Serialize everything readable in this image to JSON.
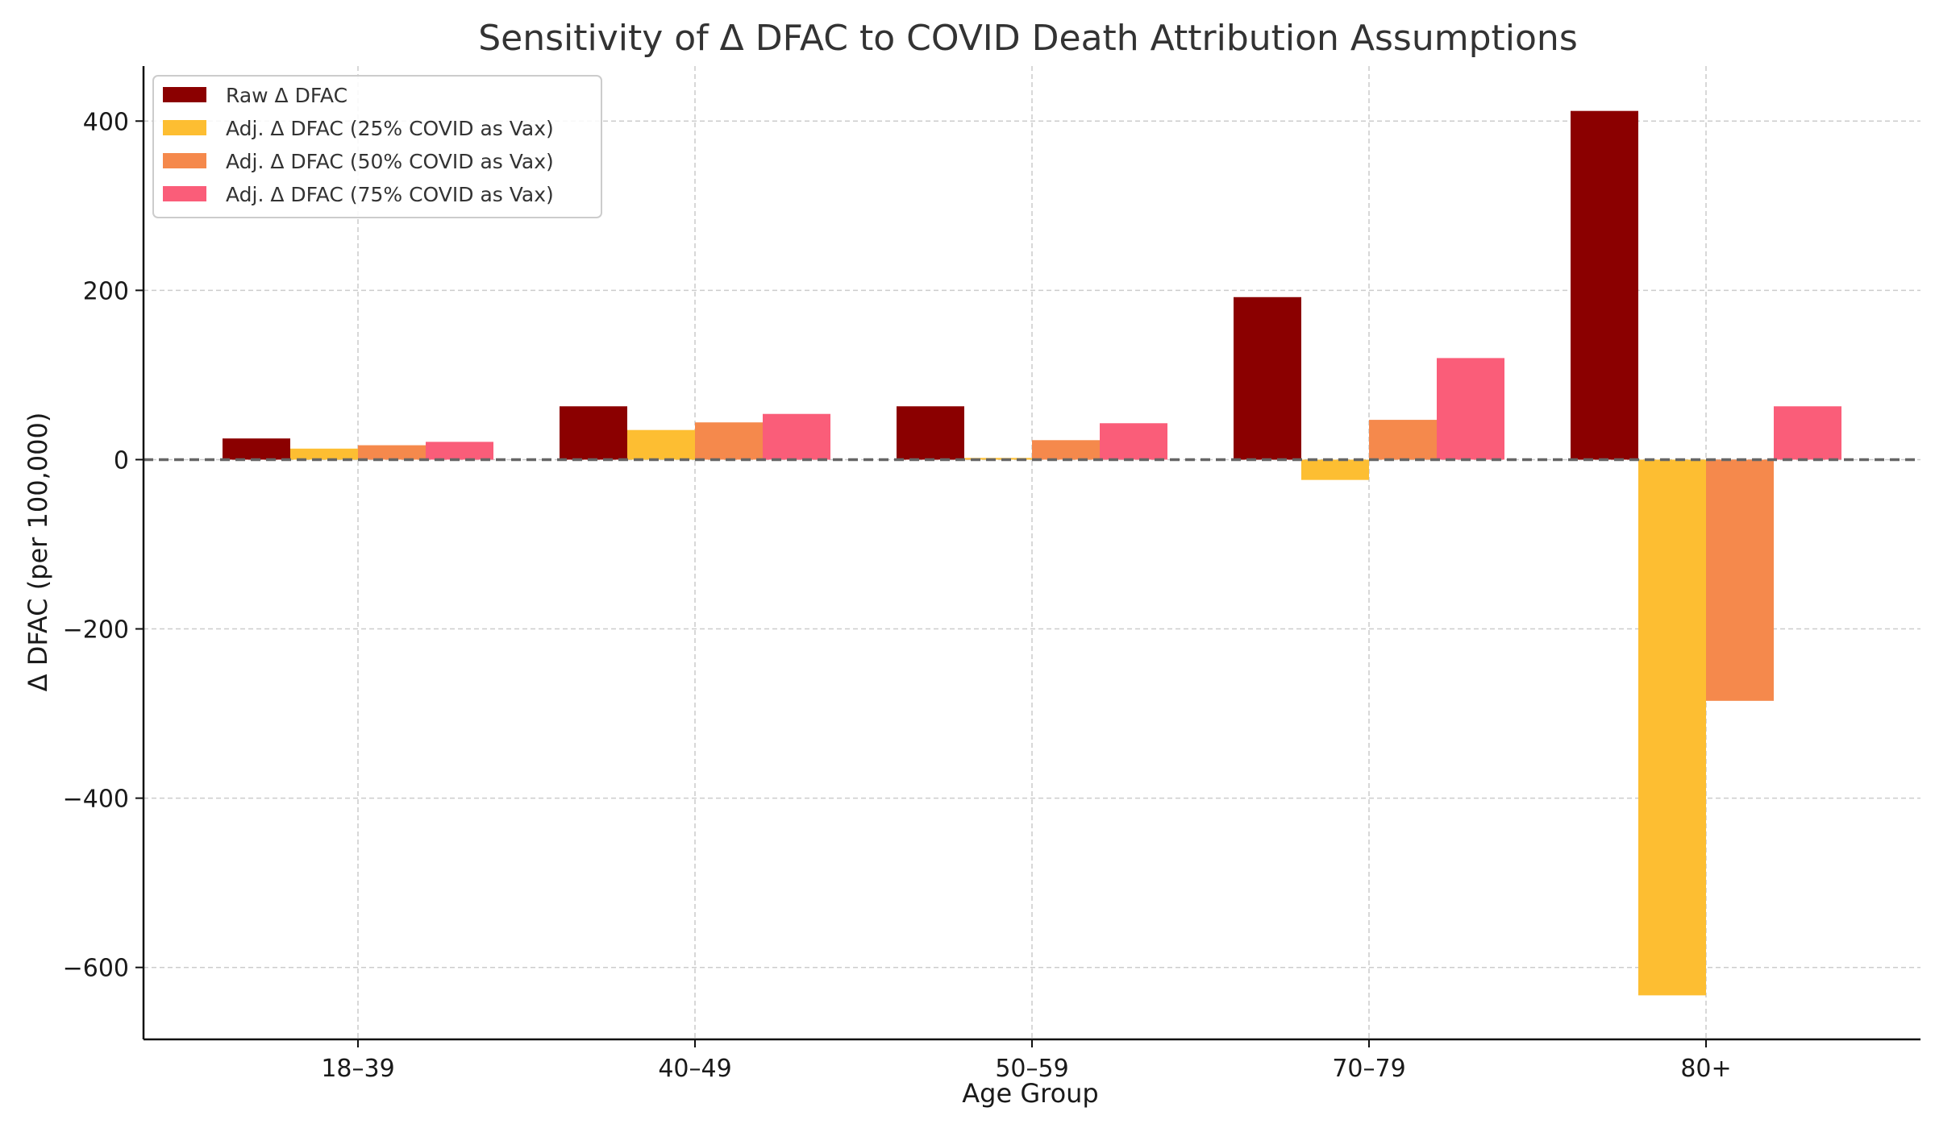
{
  "chart_data": {
    "type": "bar",
    "title": "Sensitivity of Δ DFAC to COVID Death Attribution Assumptions",
    "xlabel": "Age Group",
    "ylabel": "Δ DFAC (per 100,000)",
    "categories": [
      "18–39",
      "40–49",
      "50–59",
      "70–79",
      "80+"
    ],
    "ylim": [
      -685,
      465
    ],
    "yticks": [
      400,
      200,
      0,
      -200,
      -400,
      -600
    ],
    "ytick_labels": [
      "400",
      "200",
      "0",
      "−200",
      "−400",
      "−600"
    ],
    "grid": true,
    "legend_position": "top-left",
    "reference_line": 0,
    "series": [
      {
        "name": "Raw Δ DFAC",
        "color": "#8b0000",
        "values": [
          25,
          63,
          63,
          192,
          412
        ]
      },
      {
        "name": "Adj. Δ DFAC (25% COVID as Vax)",
        "color": "#fdbe32",
        "values": [
          13,
          35,
          2,
          -24,
          -633
        ]
      },
      {
        "name": "Adj. Δ DFAC (50% COVID as Vax)",
        "color": "#f5894c",
        "values": [
          17,
          44,
          23,
          47,
          -285
        ]
      },
      {
        "name": "Adj. Δ DFAC (75% COVID as Vax)",
        "color": "#fa5d79",
        "values": [
          21,
          54,
          43,
          120,
          63
        ]
      }
    ]
  }
}
